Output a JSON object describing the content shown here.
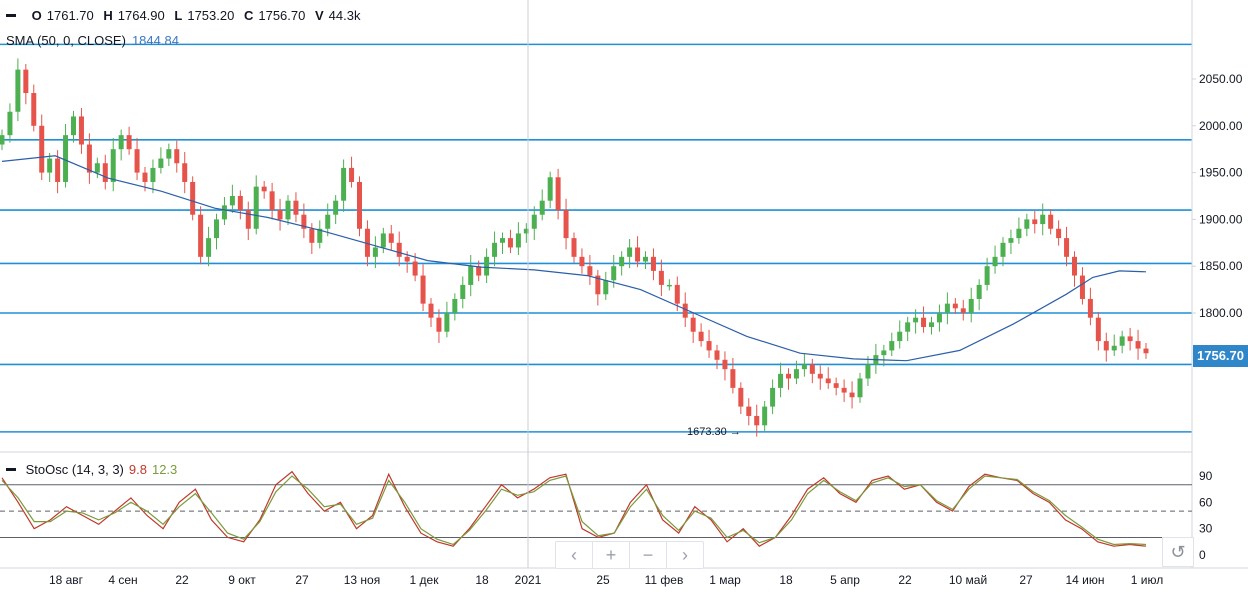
{
  "ohlc": {
    "o_label": "O",
    "o": "1761.70",
    "h_label": "H",
    "h": "1764.90",
    "l_label": "L",
    "l": "1753.20",
    "c_label": "C",
    "c": "1756.70",
    "v_label": "V",
    "v": "44.3k"
  },
  "sma": {
    "label": "SMA (50, 0, CLOSE)",
    "value": "1844.84"
  },
  "stoch": {
    "label": "StoOsc (14, 3, 3)",
    "k": "9.8",
    "d": "12.3"
  },
  "last_price_label": "1756.70",
  "low_marker": "1673.30 →",
  "nav": {
    "prev": "‹",
    "zoom_in": "+",
    "zoom_out": "−",
    "next": "›",
    "reset": "↺"
  },
  "colors": {
    "up": "#4caf50",
    "down": "#e5534b",
    "hline": "#1f8fd6",
    "sma": "#2b5fa8",
    "k": "#c0392b",
    "d": "#7b9a3c"
  },
  "chart_data": [
    {
      "type": "candlestick",
      "title": "",
      "ylim": [
        1660,
        2100
      ],
      "y_ticks": [
        1800,
        1850,
        1900,
        1950,
        2000,
        2050
      ],
      "x_ticks": [
        "18 авг",
        "4 сен",
        "22",
        "9 окт",
        "27",
        "13 ноя",
        "1 дек",
        "18",
        "2021",
        "25",
        "11 фев",
        "1 мар",
        "18",
        "5 апр",
        "22",
        "10 май",
        "27",
        "14 июн",
        "1 июл"
      ],
      "horizontal_levels": [
        2087,
        1985,
        1910,
        1853,
        1800,
        1745,
        1673
      ],
      "sma_50": [
        [
          0,
          1962
        ],
        [
          20,
          1968
        ],
        [
          40,
          1944
        ],
        [
          60,
          1930
        ],
        [
          80,
          1912
        ],
        [
          100,
          1902
        ],
        [
          120,
          1888
        ],
        [
          140,
          1872
        ],
        [
          160,
          1856
        ],
        [
          180,
          1849
        ],
        [
          200,
          1846
        ],
        [
          220,
          1840
        ],
        [
          240,
          1825
        ],
        [
          260,
          1800
        ],
        [
          280,
          1775
        ],
        [
          300,
          1757
        ],
        [
          320,
          1751
        ],
        [
          340,
          1749
        ],
        [
          360,
          1760
        ],
        [
          380,
          1788
        ],
        [
          400,
          1820
        ],
        [
          410,
          1838
        ],
        [
          420,
          1845
        ],
        [
          430,
          1844
        ]
      ],
      "closes": [
        1990,
        2015,
        2060,
        2035,
        2000,
        1950,
        1965,
        1940,
        1990,
        2010,
        1980,
        1950,
        1960,
        1940,
        1975,
        1990,
        1975,
        1950,
        1940,
        1955,
        1965,
        1975,
        1960,
        1940,
        1905,
        1860,
        1880,
        1900,
        1915,
        1925,
        1910,
        1890,
        1935,
        1930,
        1910,
        1900,
        1920,
        1905,
        1890,
        1875,
        1890,
        1905,
        1920,
        1955,
        1940,
        1890,
        1860,
        1870,
        1885,
        1875,
        1860,
        1855,
        1840,
        1810,
        1795,
        1780,
        1800,
        1815,
        1830,
        1850,
        1840,
        1860,
        1875,
        1880,
        1870,
        1885,
        1890,
        1905,
        1920,
        1945,
        1910,
        1880,
        1860,
        1850,
        1840,
        1820,
        1835,
        1850,
        1860,
        1870,
        1855,
        1860,
        1845,
        1830,
        1830,
        1810,
        1795,
        1780,
        1770,
        1760,
        1750,
        1740,
        1720,
        1700,
        1690,
        1680,
        1700,
        1720,
        1735,
        1730,
        1740,
        1745,
        1735,
        1730,
        1725,
        1720,
        1715,
        1710,
        1730,
        1745,
        1755,
        1760,
        1770,
        1780,
        1790,
        1795,
        1785,
        1790,
        1800,
        1810,
        1805,
        1800,
        1815,
        1830,
        1850,
        1860,
        1875,
        1880,
        1890,
        1900,
        1895,
        1905,
        1890,
        1880,
        1860,
        1840,
        1815,
        1795,
        1770,
        1760,
        1765,
        1775,
        1770,
        1762,
        1757
      ]
    },
    {
      "type": "line",
      "title": "StoOsc (14, 3, 3)",
      "ylim": [
        0,
        100
      ],
      "y_ticks": [
        0,
        30,
        60,
        90
      ],
      "levels": [
        80,
        50,
        20
      ],
      "series": [
        {
          "name": "%K",
          "values": [
            88,
            60,
            30,
            40,
            55,
            45,
            35,
            50,
            65,
            45,
            30,
            60,
            75,
            40,
            20,
            15,
            40,
            80,
            95,
            70,
            50,
            60,
            30,
            45,
            92,
            55,
            25,
            15,
            10,
            30,
            55,
            80,
            65,
            75,
            88,
            92,
            30,
            20,
            25,
            60,
            80,
            40,
            25,
            55,
            40,
            15,
            30,
            10,
            20,
            45,
            75,
            88,
            70,
            60,
            85,
            90,
            75,
            80,
            60,
            50,
            78,
            92,
            88,
            85,
            70,
            60,
            40,
            30,
            15,
            10,
            12,
            10
          ]
        },
        {
          "name": "%D",
          "values": [
            85,
            65,
            38,
            38,
            50,
            48,
            40,
            48,
            60,
            50,
            35,
            55,
            70,
            48,
            25,
            18,
            38,
            72,
            90,
            75,
            55,
            58,
            35,
            42,
            85,
            60,
            30,
            18,
            12,
            28,
            50,
            75,
            68,
            72,
            85,
            90,
            38,
            22,
            25,
            55,
            75,
            45,
            28,
            50,
            42,
            20,
            28,
            14,
            20,
            40,
            70,
            85,
            72,
            62,
            82,
            88,
            78,
            80,
            62,
            52,
            75,
            90,
            88,
            86,
            72,
            62,
            45,
            32,
            18,
            12,
            13,
            12
          ]
        }
      ]
    }
  ]
}
